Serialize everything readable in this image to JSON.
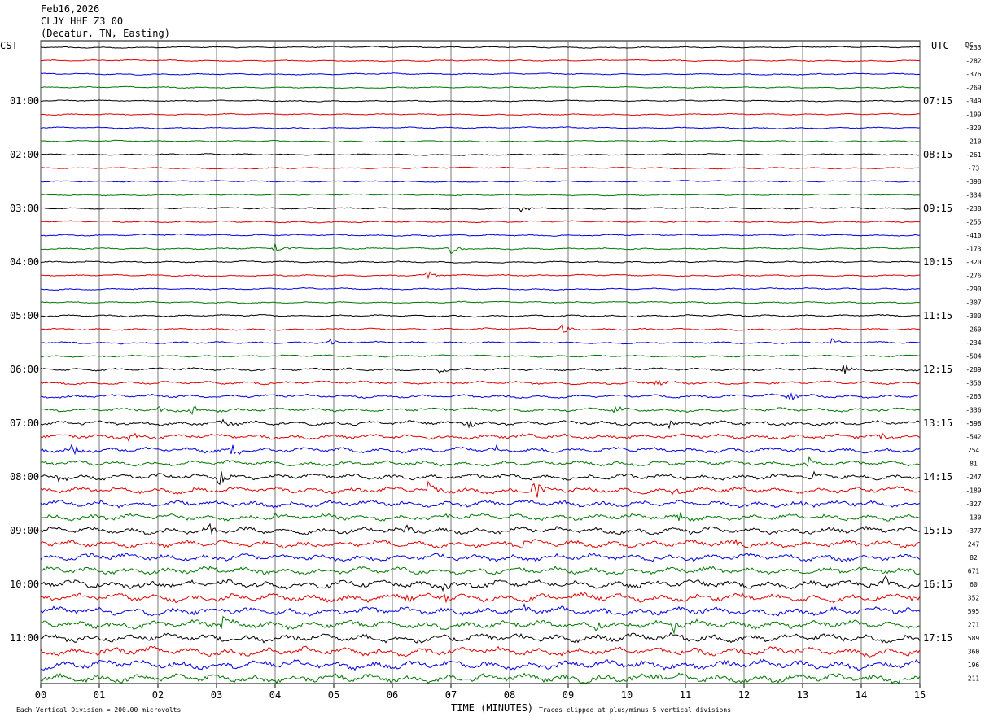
{
  "header": {
    "date": "Feb16,2026",
    "station": "CLJY HHE Z3 00",
    "location": "(Decatur, TN, Easting)"
  },
  "footer": {
    "scale_note": "Each Vertical Division =  200.00 microvolts",
    "xlabel": "TIME (MINUTES)",
    "clip_note": "Traces clipped at plus/minus 5 vertical divisions"
  },
  "colors": {
    "trace_cycle": [
      "#000000",
      "#dd0000",
      "#0000dd",
      "#007700"
    ],
    "grid": "#000000"
  },
  "chart_data": {
    "type": "line",
    "title": "CLJY HHE Z3 00",
    "xlabel": "TIME (MINUTES)",
    "xlim": [
      0,
      15
    ],
    "x_ticks": [
      "00",
      "01",
      "02",
      "03",
      "04",
      "05",
      "06",
      "07",
      "08",
      "09",
      "10",
      "11",
      "12",
      "13",
      "14",
      "15"
    ],
    "left_axis_label": "CST",
    "right_axis_label": "UTC",
    "dc_label": "DC",
    "left_time_labels": [
      "01:00",
      "02:00",
      "03:00",
      "04:00",
      "05:00",
      "06:00",
      "07:00",
      "08:00",
      "09:00",
      "10:00",
      "11:00"
    ],
    "right_time_labels": [
      "07:15",
      "08:15",
      "09:15",
      "10:15",
      "11:15",
      "12:15",
      "13:15",
      "14:15",
      "15:15",
      "16:15",
      "17:15"
    ],
    "dc_offsets": [
      -233,
      -282,
      -376,
      -269,
      -349,
      -199,
      -320,
      -210,
      -261,
      -73,
      -398,
      -334,
      -238,
      -255,
      -410,
      -173,
      -320,
      -276,
      -290,
      -307,
      -300,
      -260,
      -234,
      -504,
      -289,
      -350,
      -263,
      -336,
      -598,
      -542,
      254,
      81,
      -247,
      -189,
      -327,
      -130,
      -377,
      247,
      82,
      671,
      60,
      352,
      595,
      271,
      589,
      360,
      196,
      211
    ],
    "trace_count": 48,
    "rows_per_hour": 4,
    "noise_levels": [
      0.5,
      0.5,
      0.5,
      0.5,
      0.5,
      0.5,
      0.5,
      0.5,
      0.5,
      0.5,
      0.5,
      0.5,
      0.6,
      0.6,
      0.6,
      0.6,
      0.6,
      0.6,
      0.6,
      0.6,
      0.7,
      0.7,
      0.7,
      0.7,
      1.0,
      1.1,
      1.2,
      1.3,
      1.6,
      1.7,
      1.8,
      1.8,
      2.0,
      2.1,
      2.2,
      2.2,
      2.4,
      2.5,
      2.5,
      2.5,
      2.8,
      2.8,
      2.8,
      2.8,
      3.0,
      3.0,
      3.0,
      3.0
    ],
    "events": [
      {
        "trace": 12,
        "minute": 8.2,
        "amp": 4
      },
      {
        "trace": 15,
        "minute": 4.0,
        "amp": 9
      },
      {
        "trace": 15,
        "minute": 7.0,
        "amp": 8
      },
      {
        "trace": 17,
        "minute": 6.6,
        "amp": 6
      },
      {
        "trace": 21,
        "minute": 8.9,
        "amp": 7
      },
      {
        "trace": 22,
        "minute": 4.9,
        "amp": 5
      },
      {
        "trace": 22,
        "minute": 13.5,
        "amp": 5
      },
      {
        "trace": 24,
        "minute": 6.8,
        "amp": 4
      },
      {
        "trace": 24,
        "minute": 13.7,
        "amp": 6
      },
      {
        "trace": 25,
        "minute": 10.5,
        "amp": 6
      },
      {
        "trace": 26,
        "minute": 12.75,
        "amp": 11
      },
      {
        "trace": 27,
        "minute": 2.0,
        "amp": 6
      },
      {
        "trace": 27,
        "minute": 2.6,
        "amp": 7
      },
      {
        "trace": 27,
        "minute": 9.8,
        "amp": 10
      },
      {
        "trace": 28,
        "minute": 3.1,
        "amp": 8
      },
      {
        "trace": 28,
        "minute": 7.3,
        "amp": 6
      },
      {
        "trace": 28,
        "minute": 10.7,
        "amp": 7
      },
      {
        "trace": 29,
        "minute": 1.5,
        "amp": 8
      },
      {
        "trace": 29,
        "minute": 14.3,
        "amp": 5
      },
      {
        "trace": 30,
        "minute": 0.55,
        "amp": 8
      },
      {
        "trace": 30,
        "minute": 3.25,
        "amp": 9
      },
      {
        "trace": 30,
        "minute": 7.75,
        "amp": 6
      },
      {
        "trace": 31,
        "minute": 13.1,
        "amp": 8
      },
      {
        "trace": 32,
        "minute": 0.2,
        "amp": 8
      },
      {
        "trace": 32,
        "minute": 3.05,
        "amp": 14
      },
      {
        "trace": 32,
        "minute": 13.1,
        "amp": 6
      },
      {
        "trace": 33,
        "minute": 2.35,
        "amp": 8
      },
      {
        "trace": 33,
        "minute": 6.6,
        "amp": 8
      },
      {
        "trace": 33,
        "minute": 8.4,
        "amp": 16
      },
      {
        "trace": 33,
        "minute": 10.8,
        "amp": 8
      },
      {
        "trace": 34,
        "minute": 1.0,
        "amp": 5
      },
      {
        "trace": 34,
        "minute": 13.0,
        "amp": 5
      },
      {
        "trace": 35,
        "minute": 4.0,
        "amp": 5
      },
      {
        "trace": 35,
        "minute": 10.9,
        "amp": 6
      },
      {
        "trace": 36,
        "minute": 2.9,
        "amp": 9
      },
      {
        "trace": 36,
        "minute": 6.2,
        "amp": 8
      },
      {
        "trace": 36,
        "minute": 11.1,
        "amp": 5
      },
      {
        "trace": 37,
        "minute": 8.2,
        "amp": 8
      },
      {
        "trace": 37,
        "minute": 11.8,
        "amp": 6
      },
      {
        "trace": 38,
        "minute": 8.0,
        "amp": 4
      },
      {
        "trace": 39,
        "minute": 2.9,
        "amp": 6
      },
      {
        "trace": 40,
        "minute": 2.3,
        "amp": 6
      },
      {
        "trace": 40,
        "minute": 6.85,
        "amp": 10
      },
      {
        "trace": 40,
        "minute": 14.4,
        "amp": 12
      },
      {
        "trace": 41,
        "minute": 6.1,
        "amp": 9
      },
      {
        "trace": 41,
        "minute": 6.9,
        "amp": 7
      },
      {
        "trace": 42,
        "minute": 8.25,
        "amp": 5
      },
      {
        "trace": 42,
        "minute": 14.4,
        "amp": 9
      },
      {
        "trace": 43,
        "minute": 3.1,
        "amp": 8
      },
      {
        "trace": 43,
        "minute": 9.5,
        "amp": 8
      },
      {
        "trace": 43,
        "minute": 10.8,
        "amp": 10
      },
      {
        "trace": 47,
        "minute": 10.5,
        "amp": 6
      }
    ]
  }
}
